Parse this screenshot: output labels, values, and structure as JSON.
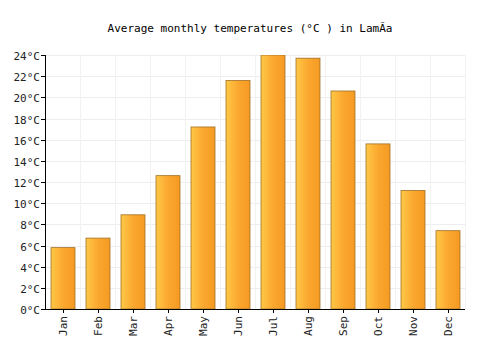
{
  "chart_data": {
    "type": "bar",
    "title": "Average monthly temperatures (°C ) in LamÃ­a",
    "categories": [
      "Jan",
      "Feb",
      "Mar",
      "Apr",
      "May",
      "Jun",
      "Jul",
      "Aug",
      "Sep",
      "Oct",
      "Nov",
      "Dec"
    ],
    "values": [
      5.8,
      6.7,
      8.9,
      12.6,
      17.2,
      21.6,
      24.0,
      23.7,
      20.6,
      15.6,
      11.2,
      7.4
    ],
    "color": "#fba830",
    "ylim": [
      0,
      24
    ],
    "yticks": [
      {
        "value": 0,
        "label": "0°C"
      },
      {
        "value": 2,
        "label": "2°C"
      },
      {
        "value": 4,
        "label": "4°C"
      },
      {
        "value": 6,
        "label": "6°C"
      },
      {
        "value": 8,
        "label": "8°C"
      },
      {
        "value": 10,
        "label": "10°C"
      },
      {
        "value": 12,
        "label": "12°C"
      },
      {
        "value": 14,
        "label": "14°C"
      },
      {
        "value": 16,
        "label": "16°C"
      },
      {
        "value": 18,
        "label": "18°C"
      },
      {
        "value": 20,
        "label": "20°C"
      },
      {
        "value": 22,
        "label": "22°C"
      },
      {
        "value": 24,
        "label": "24°C"
      }
    ],
    "grid": true
  }
}
